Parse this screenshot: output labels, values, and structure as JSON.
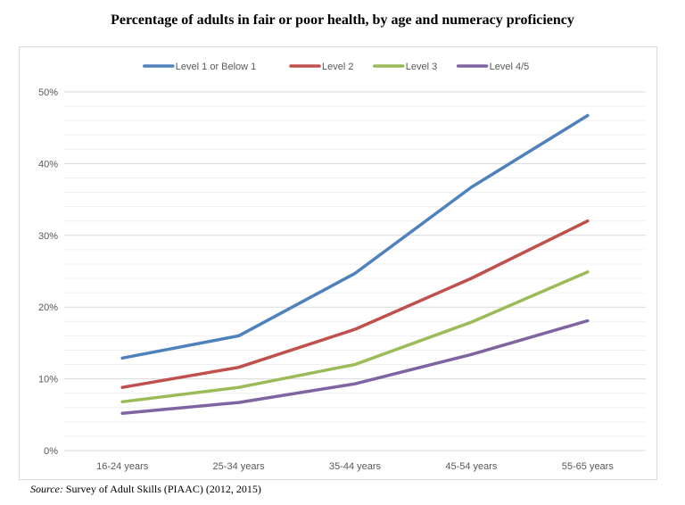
{
  "chart_data": {
    "type": "line",
    "title": "Percentage of adults in fair or poor health, by age and numeracy proficiency",
    "categories": [
      "16-24 years",
      "25-34 years",
      "35-44 years",
      "45-54 years",
      "55-65 years"
    ],
    "series": [
      {
        "name": "Level 1 or Below 1",
        "color": "#4f81bd",
        "values": [
          12.9,
          16.0,
          24.7,
          36.7,
          46.7
        ]
      },
      {
        "name": "Level 2",
        "color": "#c0504d",
        "values": [
          8.8,
          11.6,
          16.9,
          24.0,
          32.0
        ]
      },
      {
        "name": "Level 3",
        "color": "#9bbb59",
        "values": [
          6.8,
          8.8,
          12.0,
          17.9,
          24.9
        ]
      },
      {
        "name": "Level 4/5",
        "color": "#8064a2",
        "values": [
          5.2,
          6.7,
          9.3,
          13.4,
          18.1
        ]
      }
    ],
    "y_ticks": [
      "0%",
      "10%",
      "20%",
      "30%",
      "40%",
      "50%"
    ],
    "ylim": [
      0,
      50
    ],
    "xlabel": "",
    "ylabel": "",
    "legend_position": "top",
    "grid": true
  },
  "source": {
    "label": "Source:",
    "text": "Survey of Adult Skills (PIAAC) (2012, 2015)"
  }
}
